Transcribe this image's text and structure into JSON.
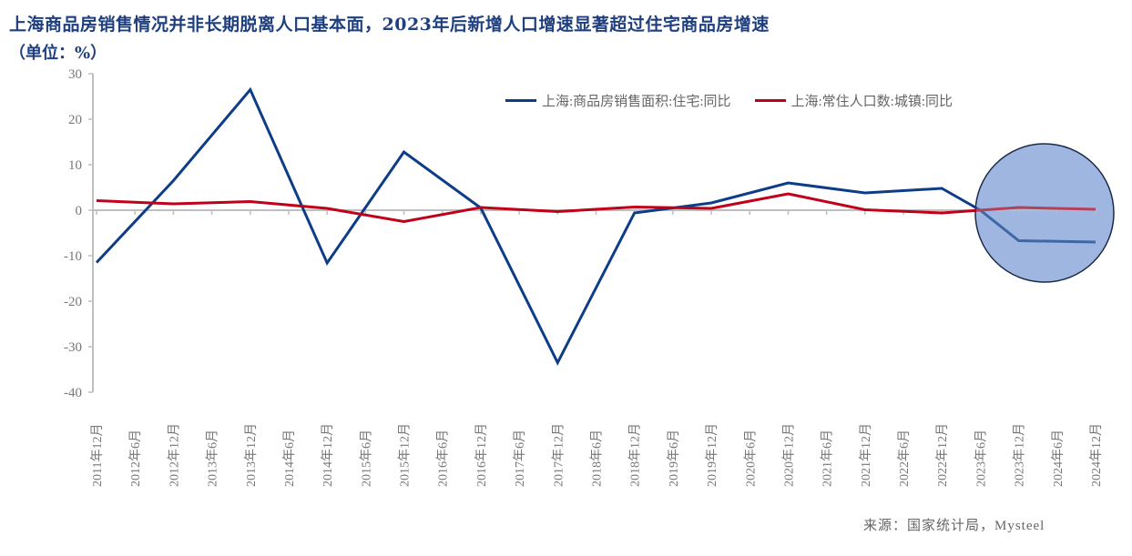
{
  "title": "上海商品房销售情况并非长期脱离人口基本面，2023年后新增人口增速显著超过住宅商品房增速",
  "subtitle": "（单位：%）",
  "source": "来源：国家统计局，Mysteel",
  "legend": [
    {
      "label": "上海:商品房销售面积:住宅:同比",
      "color": "#0d3d87"
    },
    {
      "label": "上海:常住人口数:城镇:同比",
      "color": "#c00018"
    }
  ],
  "highlight": {
    "shape": "circle",
    "fill": "#9fb6e0",
    "stroke": "#1b2a4a",
    "around_categories": [
      "2023年6月",
      "2024年12月"
    ]
  },
  "chart_data": {
    "type": "line",
    "title": "上海商品房销售情况并非长期脱离人口基本面，2023年后新增人口增速显著超过住宅商品房增速",
    "subtitle": "（单位：%）",
    "xlabel": "",
    "ylabel": "%",
    "ylim": [
      -40,
      30
    ],
    "yticks": [
      30,
      20,
      10,
      0,
      -10,
      -20,
      -30,
      -40
    ],
    "grid": false,
    "legend_position": "top-right",
    "categories": [
      "2011年12月",
      "2012年6月",
      "2012年12月",
      "2013年6月",
      "2013年12月",
      "2014年6月",
      "2014年12月",
      "2015年6月",
      "2015年12月",
      "2016年6月",
      "2016年12月",
      "2017年6月",
      "2017年12月",
      "2018年6月",
      "2018年12月",
      "2019年6月",
      "2019年12月",
      "2020年6月",
      "2020年12月",
      "2021年6月",
      "2021年12月",
      "2022年6月",
      "2022年12月",
      "2023年6月",
      "2023年12月",
      "2024年6月",
      "2024年12月"
    ],
    "series": [
      {
        "name": "上海:商品房销售面积:住宅:同比",
        "color": "#0d3d87",
        "values": [
          -11.5,
          null,
          6.5,
          null,
          26.5,
          null,
          -11.6,
          null,
          12.8,
          null,
          0.5,
          null,
          -33.5,
          null,
          -0.6,
          null,
          1.6,
          null,
          6.0,
          null,
          3.8,
          null,
          4.8,
          0.0,
          -6.7,
          null,
          -7.0
        ]
      },
      {
        "name": "上海:常住人口数:城镇:同比",
        "color": "#c00018",
        "values": [
          2.1,
          null,
          1.4,
          null,
          1.9,
          null,
          0.4,
          null,
          -2.5,
          null,
          0.6,
          null,
          -0.3,
          null,
          0.7,
          null,
          0.4,
          null,
          3.6,
          null,
          0.1,
          null,
          -0.6,
          0.0,
          0.6,
          null,
          0.2
        ]
      }
    ]
  }
}
